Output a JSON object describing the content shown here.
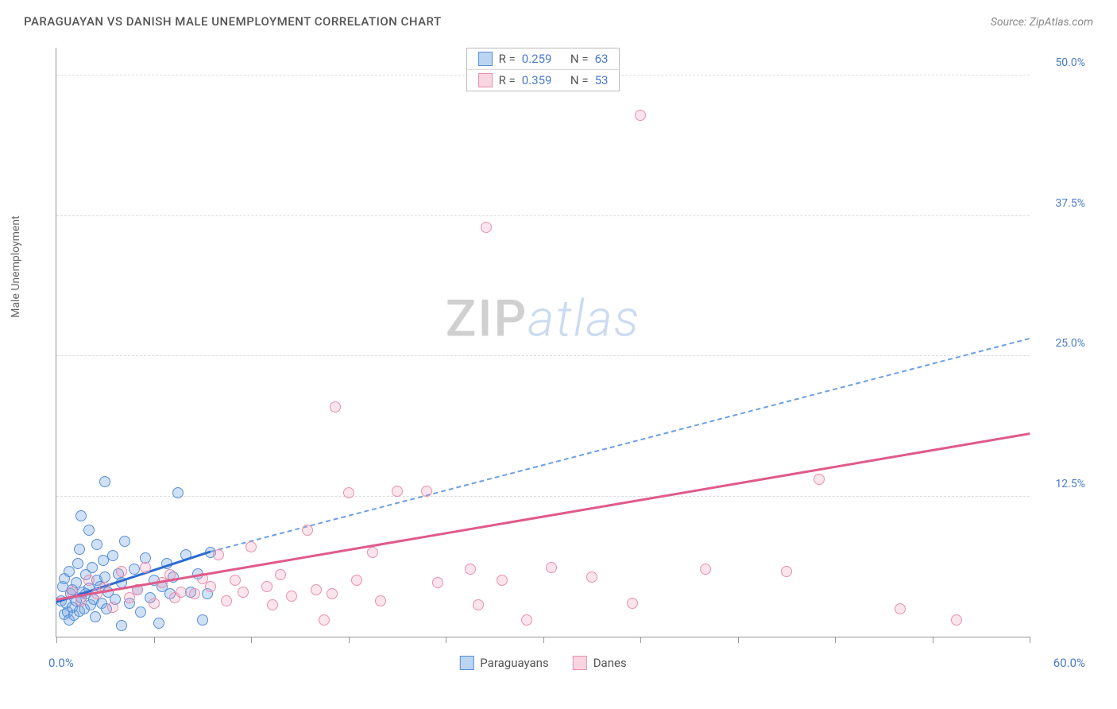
{
  "title": "PARAGUAYAN VS DANISH MALE UNEMPLOYMENT CORRELATION CHART",
  "source": "Source: ZipAtlas.com",
  "ylabel": "Male Unemployment",
  "watermark": {
    "part1": "ZIP",
    "part2": "atlas"
  },
  "chart": {
    "type": "scatter",
    "background_color": "#ffffff",
    "grid_color": "#dddddd",
    "axis_color": "#999999",
    "tick_label_color": "#4a7bd0",
    "xlim": [
      0,
      60
    ],
    "ylim": [
      0,
      52.5
    ],
    "xaxis": {
      "min_label": "0.0%",
      "max_label": "60.0%",
      "ticks": [
        0,
        6,
        12,
        18,
        24,
        30,
        36,
        42,
        48,
        54,
        60
      ]
    },
    "yaxis": {
      "ticks": [
        12.5,
        25.0,
        37.5,
        50.0
      ],
      "tick_labels": [
        "12.5%",
        "25.0%",
        "37.5%",
        "50.0%"
      ]
    },
    "series": [
      {
        "name": "Paraguayans",
        "marker_color_fill": "rgba(120,170,230,0.35)",
        "marker_color_stroke": "#5b8fd6",
        "line_color": "#2e6bd0",
        "R": "0.259",
        "N": "63",
        "trend_solid": {
          "x1": 0,
          "y1": 3.0,
          "x2": 9.5,
          "y2": 7.5
        },
        "trend_dashed": {
          "x1": 9.5,
          "y1": 7.5,
          "x2": 60,
          "y2": 26.5
        },
        "points": [
          [
            0.3,
            3.2
          ],
          [
            0.4,
            4.5
          ],
          [
            0.5,
            2.0
          ],
          [
            0.5,
            5.2
          ],
          [
            0.6,
            3.0
          ],
          [
            0.7,
            2.2
          ],
          [
            0.8,
            5.8
          ],
          [
            0.8,
            1.5
          ],
          [
            0.9,
            3.8
          ],
          [
            1.0,
            4.2
          ],
          [
            1.0,
            2.6
          ],
          [
            1.1,
            1.9
          ],
          [
            1.2,
            4.8
          ],
          [
            1.2,
            3.2
          ],
          [
            1.3,
            6.5
          ],
          [
            1.4,
            2.3
          ],
          [
            1.4,
            7.8
          ],
          [
            1.5,
            3.5
          ],
          [
            1.5,
            10.8
          ],
          [
            1.6,
            4.0
          ],
          [
            1.7,
            2.5
          ],
          [
            1.8,
            5.5
          ],
          [
            1.8,
            3.8
          ],
          [
            2.0,
            9.5
          ],
          [
            2.0,
            4.3
          ],
          [
            2.1,
            2.8
          ],
          [
            2.2,
            6.2
          ],
          [
            2.3,
            3.3
          ],
          [
            2.4,
            1.8
          ],
          [
            2.5,
            5.0
          ],
          [
            2.5,
            8.2
          ],
          [
            2.7,
            4.5
          ],
          [
            2.8,
            3.0
          ],
          [
            2.9,
            6.8
          ],
          [
            3.0,
            5.3
          ],
          [
            3.1,
            2.5
          ],
          [
            3.2,
            4.0
          ],
          [
            3.5,
            7.2
          ],
          [
            3.6,
            3.3
          ],
          [
            3.8,
            5.6
          ],
          [
            4.0,
            1.0
          ],
          [
            4.0,
            4.8
          ],
          [
            4.2,
            8.5
          ],
          [
            4.5,
            3.0
          ],
          [
            4.8,
            6.0
          ],
          [
            5.0,
            4.2
          ],
          [
            5.2,
            2.2
          ],
          [
            5.5,
            7.0
          ],
          [
            5.8,
            3.5
          ],
          [
            6.0,
            5.0
          ],
          [
            6.3,
            1.2
          ],
          [
            3.0,
            13.8
          ],
          [
            6.5,
            4.5
          ],
          [
            6.8,
            6.5
          ],
          [
            7.0,
            3.8
          ],
          [
            7.2,
            5.3
          ],
          [
            7.5,
            12.8
          ],
          [
            8.0,
            7.3
          ],
          [
            8.3,
            4.0
          ],
          [
            8.7,
            5.6
          ],
          [
            9.0,
            1.5
          ],
          [
            9.3,
            3.8
          ],
          [
            9.5,
            7.5
          ]
        ]
      },
      {
        "name": "Danes",
        "marker_color_fill": "rgba(240,150,180,0.25)",
        "marker_color_stroke": "#e890ae",
        "line_color": "#e05a8a",
        "R": "0.359",
        "N": "53",
        "trend_solid": {
          "x1": 0,
          "y1": 3.2,
          "x2": 60,
          "y2": 18.0
        },
        "trend_dashed": null,
        "points": [
          [
            1.0,
            4.0
          ],
          [
            1.5,
            3.2
          ],
          [
            2.0,
            5.0
          ],
          [
            2.5,
            3.8
          ],
          [
            3.0,
            4.4
          ],
          [
            3.5,
            2.6
          ],
          [
            4.0,
            5.8
          ],
          [
            4.5,
            3.5
          ],
          [
            5.0,
            4.2
          ],
          [
            5.5,
            6.2
          ],
          [
            6.0,
            3.0
          ],
          [
            6.5,
            4.8
          ],
          [
            7.0,
            5.5
          ],
          [
            7.3,
            3.5
          ],
          [
            7.7,
            4.0
          ],
          [
            8.5,
            3.8
          ],
          [
            9.0,
            5.2
          ],
          [
            9.5,
            4.5
          ],
          [
            10.0,
            7.3
          ],
          [
            10.5,
            3.2
          ],
          [
            11.0,
            5.0
          ],
          [
            11.5,
            4.0
          ],
          [
            12.0,
            8.0
          ],
          [
            13.0,
            4.5
          ],
          [
            13.3,
            2.8
          ],
          [
            13.8,
            5.5
          ],
          [
            14.5,
            3.6
          ],
          [
            15.5,
            9.5
          ],
          [
            16.0,
            4.2
          ],
          [
            16.5,
            1.5
          ],
          [
            17.0,
            3.8
          ],
          [
            17.2,
            20.5
          ],
          [
            18.0,
            12.8
          ],
          [
            18.5,
            5.0
          ],
          [
            19.5,
            7.5
          ],
          [
            20.0,
            3.2
          ],
          [
            21.0,
            13.0
          ],
          [
            22.8,
            13.0
          ],
          [
            23.5,
            4.8
          ],
          [
            25.5,
            6.0
          ],
          [
            26.0,
            2.8
          ],
          [
            26.5,
            36.5
          ],
          [
            27.5,
            5.0
          ],
          [
            29.0,
            1.5
          ],
          [
            30.5,
            6.2
          ],
          [
            33.0,
            5.3
          ],
          [
            35.5,
            3.0
          ],
          [
            36.0,
            46.5
          ],
          [
            40.0,
            6.0
          ],
          [
            45.0,
            5.8
          ],
          [
            47.0,
            14.0
          ],
          [
            52.0,
            2.5
          ],
          [
            55.5,
            1.5
          ]
        ]
      }
    ],
    "legend_top": {
      "r_label": "R =",
      "n_label": "N ="
    },
    "legend_bottom": [
      "Paraguayans",
      "Danes"
    ]
  }
}
